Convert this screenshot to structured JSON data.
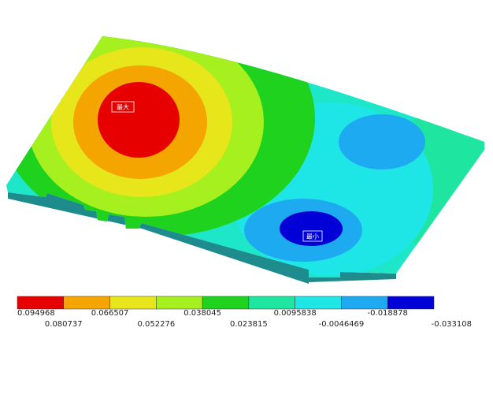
{
  "plot": {
    "max_label": "最大",
    "min_label": "最小"
  },
  "legend": {
    "values": [
      0.094968,
      0.080737,
      0.066507,
      0.052276,
      0.038045,
      0.023815,
      0.0095838,
      -0.0046469,
      -0.018878,
      -0.033108
    ],
    "colors": [
      "#e60000",
      "#f5a500",
      "#e6e61a",
      "#a5f01e",
      "#1ed21e",
      "#1ee6a0",
      "#1ee6e6",
      "#1eaaf0",
      "#0000d7"
    ]
  }
}
